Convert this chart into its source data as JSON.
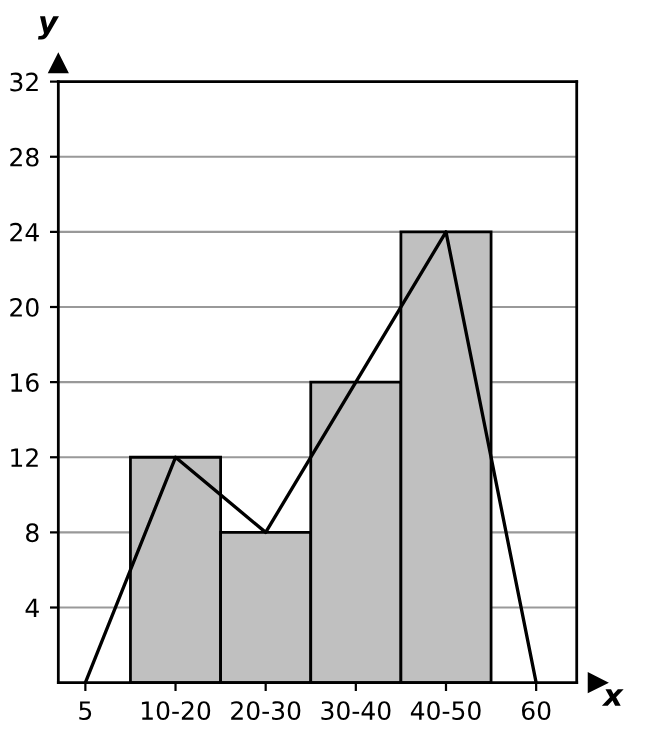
{
  "chart_data": {
    "type": "bar",
    "xlabel": "x",
    "ylabel": "y",
    "categories": [
      "5",
      "10-20",
      "20-30",
      "30-40",
      "40-50",
      "60"
    ],
    "series": [
      {
        "color": "#c0c0c0",
        "values": [
          null,
          12,
          8,
          16,
          24,
          null
        ]
      },
      {
        "type": "line",
        "color": "#000000",
        "values": [
          0,
          12,
          8,
          16,
          24,
          0
        ]
      }
    ],
    "ylim": [
      0,
      32
    ],
    "yticks": [
      4,
      8,
      12,
      16,
      20,
      24,
      28,
      32
    ],
    "grid": "y",
    "marker": "none",
    "line_style": "solid"
  }
}
